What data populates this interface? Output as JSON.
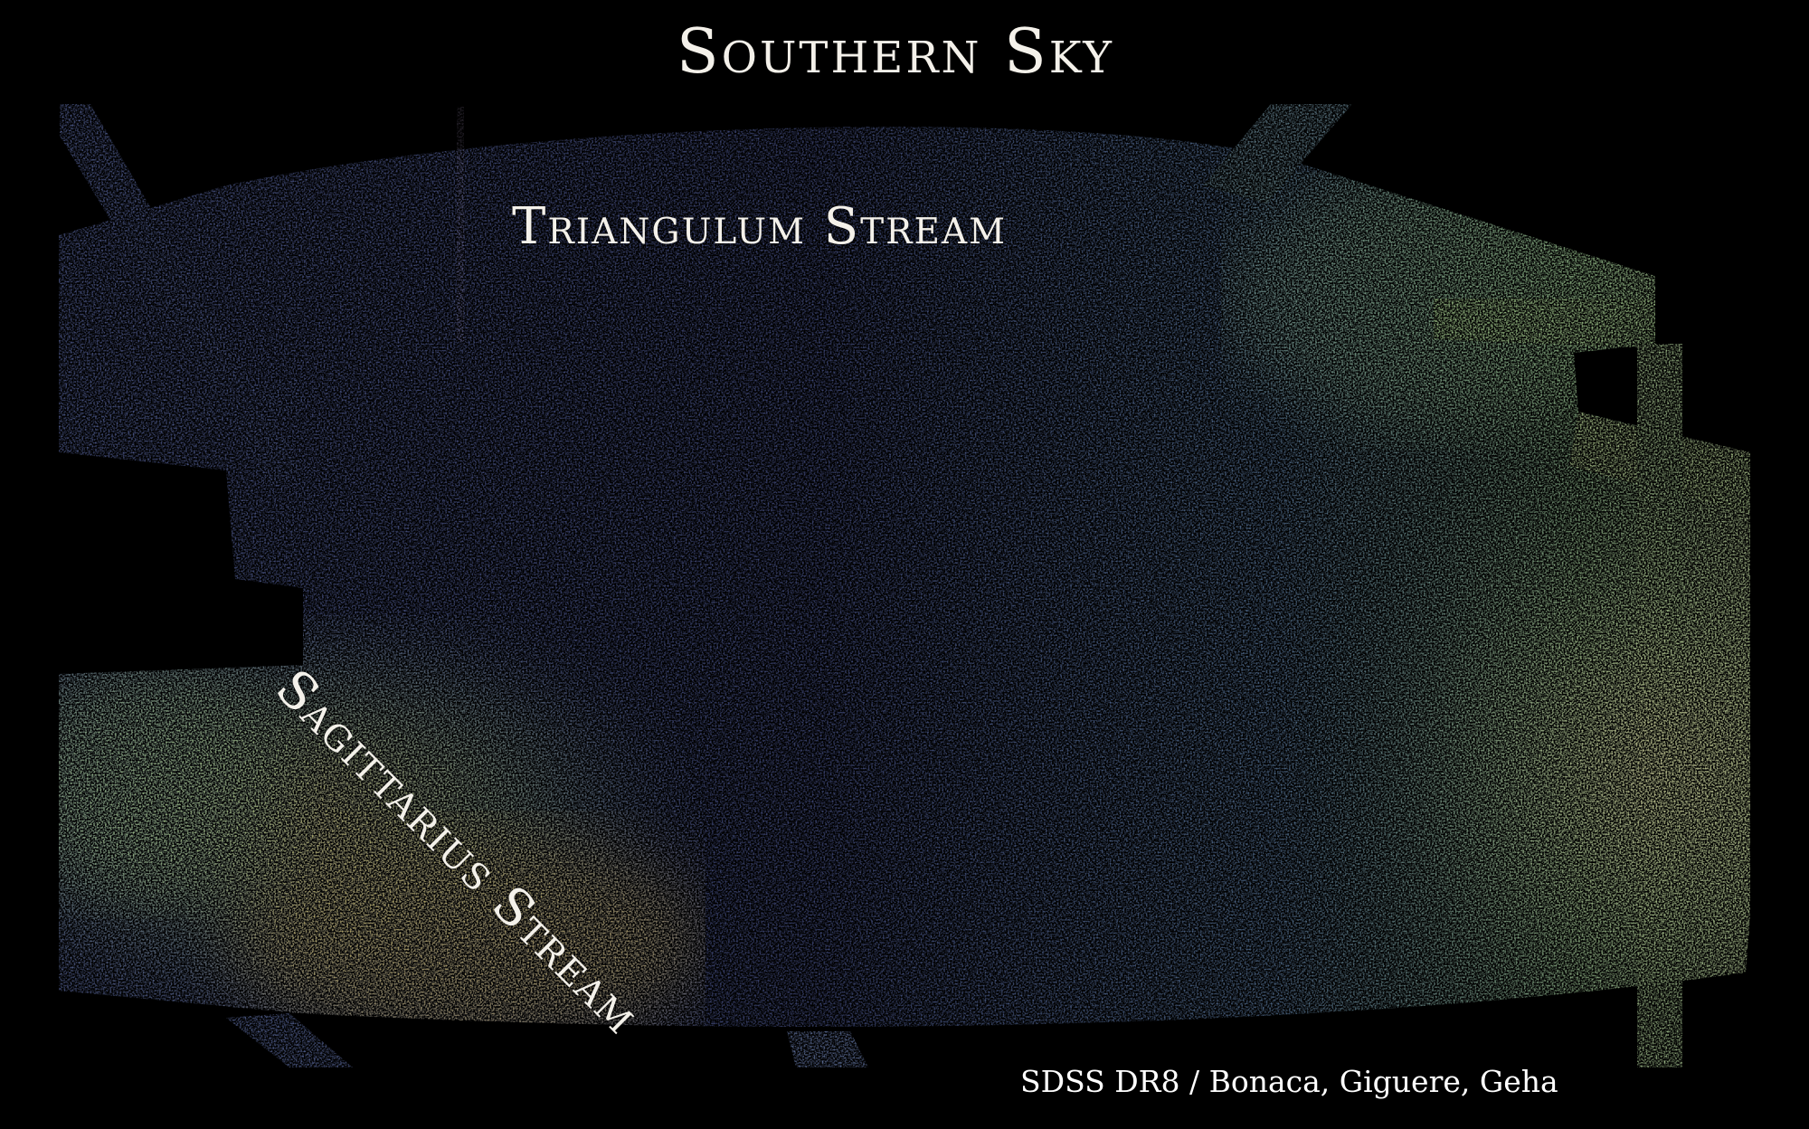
{
  "title": "Southern Sky",
  "annotations": {
    "triangulum": "Triangulum Stream",
    "sagittarius": "Sagittarius Stream"
  },
  "credit": "SDSS DR8 / Bonaca, Giguere, Geha",
  "colors": {
    "background": "#000000",
    "sky_dark": "#3f4878",
    "sky_mid": "#55679a",
    "stream_green": "#8fb87a",
    "stream_yellow": "#c9b45a",
    "edge_peach": "#d7b38c",
    "text": "#f4f1ea"
  }
}
